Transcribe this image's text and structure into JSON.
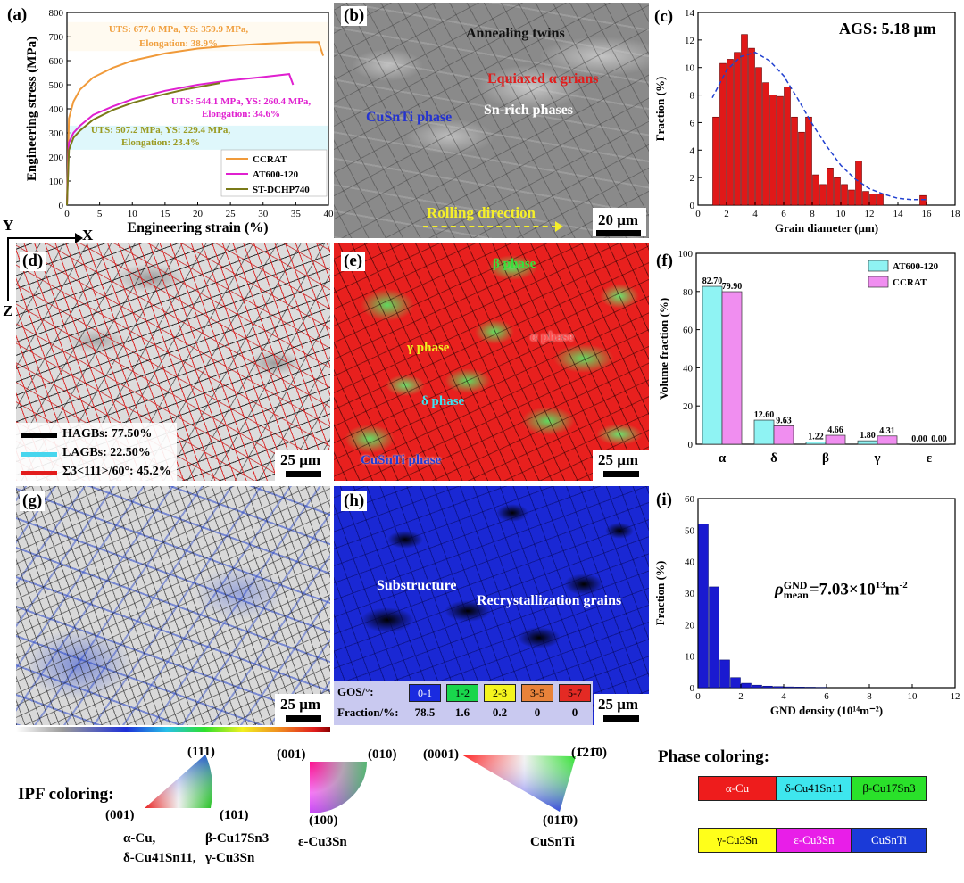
{
  "panels": {
    "a": {
      "label": "(a)",
      "annotations": [
        {
          "id": "ccrat",
          "text1": "UTS: 677.0 MPa, YS: 359.9 MPa,",
          "text2": "Elongation: 38.9%",
          "color": "#f0a040"
        },
        {
          "id": "at600",
          "text1": "UTS: 544.1 MPa, YS: 260.4 MPa,",
          "text2": "Elongation: 34.6%",
          "color": "#e020d0"
        },
        {
          "id": "st",
          "text1": "UTS: 507.2 MPa, YS: 229.4 MPa,",
          "text2": "Elongation: 23.4%",
          "color": "#9a9a20"
        }
      ],
      "legend": [
        "CCRAT",
        "AT600-120",
        "ST-DCHP740"
      ]
    },
    "b": {
      "label": "(b)",
      "annotations": [
        "Annealing twins",
        "Equiaxed α grians",
        "CuSnTi phase",
        "Sn-rich phases",
        "Rolling direction"
      ],
      "scale": "20 μm"
    },
    "c": {
      "label": "(c)",
      "ags": "AGS: 5.18 μm"
    },
    "d": {
      "label": "(d)",
      "legend": [
        "HAGBs: 77.50%",
        "LAGBs: 22.50%",
        "Σ3<111>/60°: 45.2%"
      ],
      "scale": "25 μm"
    },
    "e": {
      "label": "(e)",
      "annotations": [
        "β phase",
        "α phase",
        "γ phase",
        "δ phase",
        "CuSnTi phase"
      ],
      "scale": "25 μm"
    },
    "f": {
      "label": "(f)"
    },
    "g": {
      "label": "(g)",
      "scale": "25 μm"
    },
    "h": {
      "label": "(h)",
      "annotations": [
        "Substructure",
        "Recrystallization grains"
      ],
      "scale": "25 μm",
      "gos_label": "GOS/°:",
      "fraction_label": "Fraction/%:",
      "gos_bins": [
        {
          "range": "0-1",
          "fraction": "78.5",
          "color": "#1a2be0"
        },
        {
          "range": "1-2",
          "fraction": "1.6",
          "color": "#19d64c"
        },
        {
          "range": "2-3",
          "fraction": "0.2",
          "color": "#f4f41e"
        },
        {
          "range": "3-5",
          "fraction": "0",
          "color": "#e8823a"
        },
        {
          "range": "5-7",
          "fraction": "0",
          "color": "#e42a24"
        }
      ]
    },
    "i": {
      "label": "(i)",
      "rho_prefix": "ρ",
      "rho_sup": "GND",
      "rho_sub": "mean",
      "rho_value": "=7.03×10",
      "rho_exp": "13",
      "rho_unit": "m",
      "rho_unit_exp": "-2"
    }
  },
  "axes_labels": {
    "x": "X",
    "y": "Y",
    "z": "Z"
  },
  "ipf": {
    "title": "IPF coloring:",
    "cubic": {
      "top": "(111)",
      "left": "(001)",
      "right": "(101)",
      "caption_left1": "α-Cu,",
      "caption_left2": "δ-Cu41Sn11,",
      "caption_right1": "β-Cu17Sn3",
      "caption_right2": "γ-Cu3Sn"
    },
    "eps": {
      "tl": "(001)",
      "tr": "(010)",
      "bl": "(100)",
      "caption": "ε-Cu3Sn"
    },
    "hex": {
      "left": "(0001)",
      "tr": "(1̄21̄0)",
      "bot": "(011̄0)",
      "caption": "CuSnTi"
    }
  },
  "phase_coloring": {
    "title": "Phase coloring:",
    "items": [
      {
        "name": "α-Cu",
        "color": "#ee1c1c",
        "text": "#fff"
      },
      {
        "name": "δ-Cu41Sn11",
        "color": "#3ee6ee",
        "text": "#000"
      },
      {
        "name": "β-Cu17Sn3",
        "color": "#2ae12a",
        "text": "#000"
      },
      {
        "name": "γ-Cu3Sn",
        "color": "#ffff1a",
        "text": "#000"
      },
      {
        "name": "ε-Cu3Sn",
        "color": "#e81ee8",
        "text": "#fff"
      },
      {
        "name": "CuSnTi",
        "color": "#1a3ad8",
        "text": "#fff"
      }
    ]
  },
  "chart_data": [
    {
      "id": "a",
      "type": "line",
      "xlabel": "Engineering strain (%)",
      "ylabel": "Engineering stress (MPa)",
      "xlim": [
        0,
        40
      ],
      "ylim": [
        0,
        800
      ],
      "xticks": [
        0,
        5,
        10,
        15,
        20,
        25,
        30,
        35,
        40
      ],
      "yticks": [
        0,
        100,
        200,
        300,
        400,
        500,
        600,
        700,
        800
      ],
      "series": [
        {
          "name": "CCRAT",
          "color": "#f09a3a",
          "x": [
            0,
            0.3,
            1,
            2,
            4,
            7,
            10,
            15,
            20,
            25,
            30,
            35,
            38.5,
            39.2
          ],
          "y": [
            0,
            360,
            430,
            480,
            530,
            570,
            600,
            630,
            650,
            662,
            670,
            676,
            677,
            620
          ]
        },
        {
          "name": "AT600-120",
          "color": "#e020d0",
          "x": [
            0,
            0.3,
            1,
            2,
            4,
            7,
            10,
            15,
            20,
            25,
            30,
            34,
            34.6
          ],
          "y": [
            0,
            260,
            300,
            330,
            375,
            410,
            440,
            475,
            500,
            518,
            532,
            544,
            500
          ]
        },
        {
          "name": "ST-DCHP740",
          "color": "#7a7a18",
          "x": [
            0,
            0.3,
            1,
            2,
            4,
            7,
            10,
            14,
            18,
            22,
            23.4
          ],
          "y": [
            0,
            229,
            280,
            310,
            355,
            395,
            425,
            455,
            480,
            500,
            507
          ]
        }
      ]
    },
    {
      "id": "c",
      "type": "bar",
      "xlabel": "Grain diameter (μm)",
      "ylabel": "Fraction (%)",
      "xlim": [
        0,
        18
      ],
      "ylim": [
        0,
        14
      ],
      "xticks": [
        0,
        2,
        4,
        6,
        8,
        10,
        12,
        14,
        16,
        18
      ],
      "yticks": [
        0,
        2,
        4,
        6,
        8,
        10,
        12,
        14
      ],
      "bin_centers": [
        1.25,
        1.75,
        2.25,
        2.75,
        3.25,
        3.75,
        4.25,
        4.75,
        5.25,
        5.75,
        6.25,
        6.75,
        7.25,
        7.75,
        8.25,
        8.75,
        9.25,
        9.75,
        10.25,
        10.75,
        11.25,
        11.75,
        12.25,
        12.75,
        15.75
      ],
      "values": [
        6.4,
        10.3,
        10.6,
        11.1,
        12.4,
        11.4,
        10.0,
        8.9,
        8.0,
        7.9,
        8.6,
        6.4,
        5.3,
        6.4,
        2.2,
        1.5,
        2.7,
        2.0,
        1.5,
        1.1,
        3.2,
        1.0,
        0.8,
        0.8,
        0.7
      ],
      "fit": {
        "x": [
          1,
          2,
          3,
          4,
          5,
          6,
          7,
          8,
          9,
          10,
          11,
          12,
          13,
          14,
          15,
          16
        ],
        "y": [
          7.8,
          9.8,
          10.8,
          11.1,
          10.5,
          9.4,
          7.7,
          5.9,
          4.3,
          2.9,
          1.9,
          1.2,
          0.8,
          0.5,
          0.4,
          0.4
        ]
      }
    },
    {
      "id": "f",
      "type": "bar",
      "ylabel": "Volume fraction (%)",
      "ylim": [
        0,
        100
      ],
      "yticks": [
        0,
        20,
        40,
        60,
        80,
        100
      ],
      "categories": [
        "α",
        "δ",
        "β",
        "γ",
        "ε"
      ],
      "series": [
        {
          "name": "AT600-120",
          "color": "#8ff3f3",
          "values": [
            82.7,
            12.6,
            1.22,
            1.8,
            0.0
          ],
          "labels": [
            "82.70",
            "12.60",
            "1.22",
            "1.80",
            "0.00"
          ]
        },
        {
          "name": "CCRAT",
          "color": "#f08ef0",
          "values": [
            79.9,
            9.63,
            4.66,
            4.31,
            0.0
          ],
          "labels": [
            "79.90",
            "9.63",
            "4.66",
            "4.31",
            "0.00"
          ]
        }
      ]
    },
    {
      "id": "i",
      "type": "bar",
      "xlabel": "GND density (10¹⁴m⁻²)",
      "ylabel": "Fraction (%)",
      "xlim": [
        0,
        12
      ],
      "ylim": [
        0,
        60
      ],
      "xticks": [
        0,
        2,
        4,
        6,
        8,
        10,
        12
      ],
      "yticks": [
        0,
        10,
        20,
        30,
        40,
        50,
        60
      ],
      "bin_centers": [
        0.25,
        0.75,
        1.25,
        1.75,
        2.25,
        2.75,
        3.25,
        3.75,
        4.25,
        4.75,
        5.25,
        5.75
      ],
      "values": [
        52,
        32,
        8.8,
        3.2,
        1.4,
        0.8,
        0.5,
        0.35,
        0.25,
        0.2,
        0.15,
        0.1
      ]
    }
  ]
}
